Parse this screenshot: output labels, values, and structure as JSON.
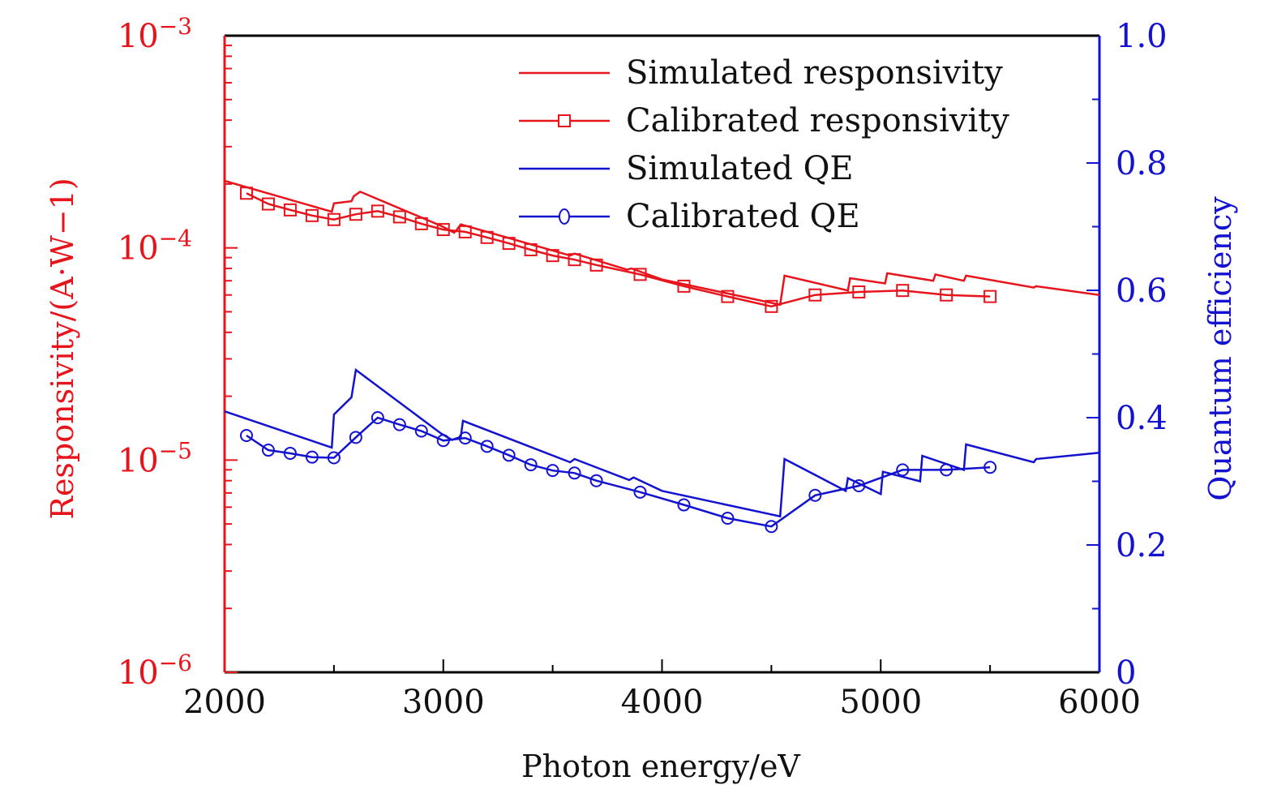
{
  "chart_data": {
    "type": "line",
    "title": "",
    "xlabel": "Photon energy/eV",
    "ylabel_left": "Responsivity/(A·W−1)",
    "ylabel_right": "Quantum efficiency",
    "xlim": [
      2000,
      6000
    ],
    "ylim_left": [
      1e-06,
      0.001
    ],
    "ylim_left_scale": "log",
    "ylim_right": [
      0,
      1.0
    ],
    "x_ticks": [
      "2000",
      "3000",
      "4000",
      "5000",
      "6000"
    ],
    "x_tick_values": [
      2000,
      3000,
      4000,
      5000,
      6000
    ],
    "y_left_ticks": [
      {
        "value": 0.001,
        "base": "10",
        "exp": "−3"
      },
      {
        "value": 0.0001,
        "base": "10",
        "exp": "−4"
      },
      {
        "value": 1e-05,
        "base": "10",
        "exp": "−5"
      },
      {
        "value": 1e-06,
        "base": "10",
        "exp": "−6"
      }
    ],
    "y_right_ticks": [
      {
        "value": 1.0,
        "label": "1.0"
      },
      {
        "value": 0.8,
        "label": "0.8"
      },
      {
        "value": 0.6,
        "label": "0.6"
      },
      {
        "value": 0.4,
        "label": "0.4"
      },
      {
        "value": 0.2,
        "label": "0.2"
      },
      {
        "value": 0,
        "label": "0"
      }
    ],
    "grid": false,
    "legend_position": "top-right",
    "colors": {
      "responsivity": "#e8141c",
      "qe": "#1212d0",
      "axis": "#000000"
    },
    "series": [
      {
        "name": "Simulated responsivity",
        "axis": "left",
        "marker": "none",
        "x": [
          2000,
          2490,
          2500,
          2580,
          2590,
          2620,
          2990,
          3050,
          3060,
          3080,
          3580,
          3600,
          3840,
          3860,
          4000,
          4540,
          4560,
          4850,
          4860,
          5020,
          5030,
          5240,
          5250,
          5380,
          5390,
          5700,
          5710,
          6000
        ],
        "y": [
          0.000207,
          0.000148,
          0.000162,
          0.000166,
          0.000175,
          0.000184,
          0.000127,
          0.000118,
          0.000121,
          0.000129,
          9.2e-05,
          9.4e-05,
          7.9e-05,
          8e-05,
          7.1e-05,
          5.4e-05,
          7.4e-05,
          6.3e-05,
          7.2e-05,
          6.8e-05,
          7.6e-05,
          7e-05,
          7.5e-05,
          7e-05,
          7.4e-05,
          6.5e-05,
          6.6e-05,
          6e-05
        ]
      },
      {
        "name": "Calibrated responsivity",
        "axis": "left",
        "marker": "square",
        "x": [
          2100,
          2200,
          2300,
          2400,
          2500,
          2600,
          2700,
          2800,
          2900,
          3000,
          3100,
          3200,
          3300,
          3400,
          3500,
          3600,
          3700,
          3900,
          4100,
          4300,
          4500,
          4700,
          4900,
          5100,
          5300,
          5500
        ],
        "y": [
          0.000181,
          0.000161,
          0.000151,
          0.000142,
          0.000136,
          0.000144,
          0.000149,
          0.00014,
          0.00013,
          0.000122,
          0.000119,
          0.000112,
          0.000105,
          9.8e-05,
          9.2e-05,
          8.8e-05,
          8.3e-05,
          7.5e-05,
          6.6e-05,
          5.9e-05,
          5.3e-05,
          6e-05,
          6.2e-05,
          6.3e-05,
          6e-05,
          5.9e-05
        ]
      },
      {
        "name": "Simulated QE",
        "axis": "right",
        "marker": "none",
        "x": [
          2000,
          2490,
          2500,
          2580,
          2600,
          2990,
          3040,
          3080,
          3090,
          3580,
          3600,
          3850,
          3870,
          4000,
          4540,
          4560,
          4840,
          4850,
          5000,
          5010,
          5180,
          5190,
          5380,
          5390,
          5700,
          5710,
          6000
        ],
        "y": [
          0.41,
          0.353,
          0.405,
          0.432,
          0.475,
          0.375,
          0.365,
          0.37,
          0.395,
          0.33,
          0.335,
          0.302,
          0.306,
          0.285,
          0.245,
          0.335,
          0.285,
          0.305,
          0.28,
          0.315,
          0.3,
          0.34,
          0.318,
          0.358,
          0.33,
          0.335,
          0.345
        ]
      },
      {
        "name": "Calibrated QE",
        "axis": "right",
        "marker": "circle",
        "x": [
          2100,
          2200,
          2300,
          2400,
          2500,
          2600,
          2700,
          2800,
          2900,
          3000,
          3100,
          3200,
          3300,
          3400,
          3500,
          3600,
          3700,
          3900,
          4100,
          4300,
          4500,
          4700,
          4900,
          5100,
          5300,
          5500
        ],
        "y": [
          0.372,
          0.349,
          0.344,
          0.338,
          0.337,
          0.369,
          0.4,
          0.389,
          0.379,
          0.364,
          0.368,
          0.355,
          0.341,
          0.326,
          0.317,
          0.313,
          0.301,
          0.283,
          0.263,
          0.242,
          0.229,
          0.278,
          0.293,
          0.318,
          0.318,
          0.322
        ]
      }
    ]
  }
}
